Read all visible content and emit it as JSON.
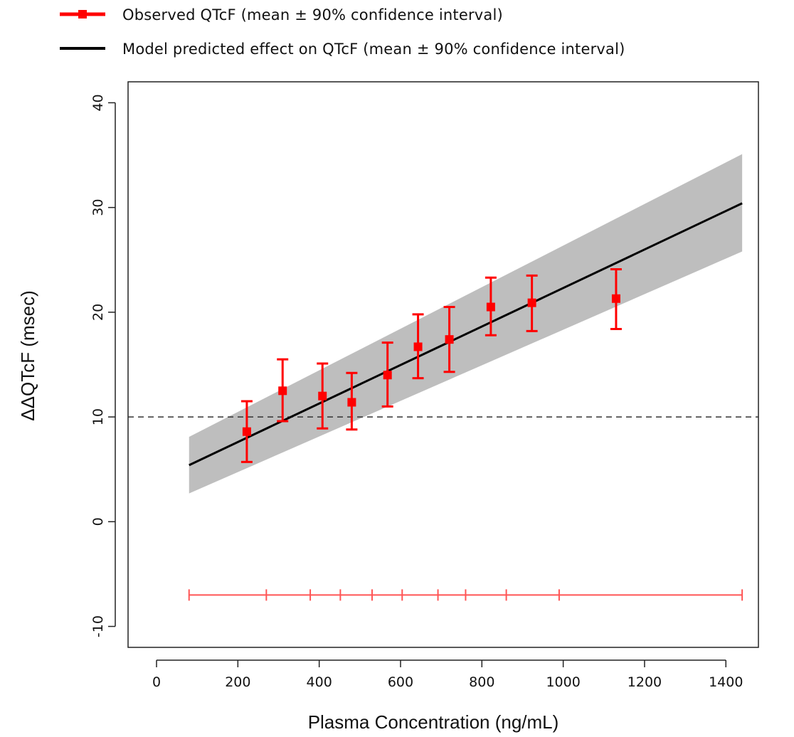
{
  "chart_data": {
    "type": "line",
    "xlabel": "Plasma Concentration (ng/mL)",
    "ylabel": "ΔΔQTcF (msec)",
    "xlim": [
      -70,
      1480
    ],
    "ylim": [
      -12,
      42
    ],
    "x_ticks": [
      0,
      200,
      400,
      600,
      800,
      1000,
      1200,
      1400
    ],
    "y_ticks": [
      -10,
      0,
      10,
      20,
      30,
      40
    ],
    "grid": false,
    "legend_position": "top-left",
    "legend": [
      {
        "label": "Observed QTcF (mean ± 90% confidence interval)",
        "color": "#ff0000",
        "marker": "square-errorbar"
      },
      {
        "label": "Model predicted effect on QTcF (mean ± 90% confidence interval)",
        "color": "#000000",
        "marker": "line"
      }
    ],
    "reference_line": {
      "y": 10,
      "style": "dashed",
      "color": "#333333"
    },
    "model": {
      "name": "Model predicted effect on QTcF (mean ± 90% confidence interval)",
      "x": [
        80,
        1440
      ],
      "mean": [
        5.4,
        30.4
      ],
      "ci_lower": [
        2.7,
        25.8
      ],
      "ci_upper": [
        8.1,
        35.1
      ],
      "line_color": "#000000",
      "band_color": "#bebebe"
    },
    "observed": {
      "name": "Observed QTcF (mean ± 90% confidence interval)",
      "color": "#ff0000",
      "x": [
        222,
        310,
        408,
        480,
        568,
        643,
        720,
        822,
        923,
        1130
      ],
      "mean": [
        8.6,
        12.5,
        12.0,
        11.4,
        14.0,
        16.7,
        17.4,
        20.5,
        20.9,
        21.3
      ],
      "lower": [
        5.7,
        9.6,
        8.9,
        8.8,
        11.0,
        13.7,
        14.3,
        17.8,
        18.2,
        18.4
      ],
      "upper": [
        11.5,
        15.5,
        15.1,
        14.2,
        17.1,
        19.8,
        20.5,
        23.3,
        23.5,
        24.1
      ]
    },
    "concentration_bins": {
      "color": "#ff5555",
      "y": -7,
      "edges": [
        80,
        270,
        378,
        452,
        530,
        604,
        692,
        760,
        860,
        990,
        1440
      ]
    }
  }
}
